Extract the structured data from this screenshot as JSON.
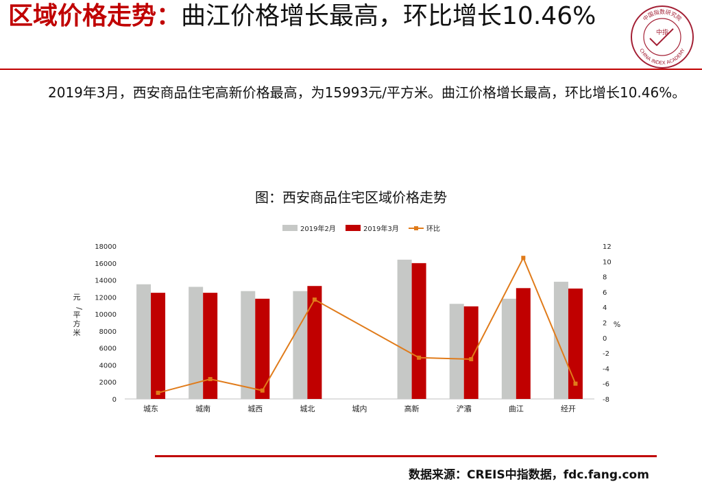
{
  "header": {
    "title_highlight": "区域价格走势",
    "title_sep": "：",
    "title_rest": "曲江价格增长最高，环比增长10.46%"
  },
  "logo": {
    "top_text": "中国指数研究院",
    "bottom_text": "CHINA INDEX ACADEMY",
    "center_text": "中指",
    "color": "#a31f34"
  },
  "description": "2019年3月，西安商品住宅高新价格最高，为15993元/平方米。曲江价格增长最高，环比增长10.46%。",
  "footer": {
    "source": "数据来源：CREIS中指数据，fdc.fang.com"
  },
  "chart_data": {
    "type": "bar",
    "title": "图：西安商品住宅区域价格走势",
    "categories": [
      "城东",
      "城南",
      "城西",
      "城北",
      "城内",
      "高新",
      "浐灞",
      "曲江",
      "经开"
    ],
    "series": [
      {
        "name": "2019年2月",
        "kind": "bar",
        "axis": "left",
        "color": "#c6c8c6",
        "values": [
          13500,
          13200,
          12700,
          12700,
          null,
          16400,
          11200,
          11800,
          13800
        ]
      },
      {
        "name": "2019年3月",
        "kind": "bar",
        "axis": "left",
        "color": "#c00000",
        "values": [
          12500,
          12500,
          11800,
          13300,
          null,
          15993,
          10900,
          13050,
          13000
        ]
      },
      {
        "name": "环比",
        "kind": "line",
        "axis": "right",
        "color": "#e07b1a",
        "values": [
          -7.2,
          -5.4,
          -6.9,
          5.0,
          null,
          -2.6,
          -2.8,
          10.46,
          -6.0
        ]
      }
    ],
    "ylabel": "元/平方米",
    "y2label": "%",
    "ylim": [
      0,
      18000
    ],
    "yticks": [
      0,
      2000,
      4000,
      6000,
      8000,
      10000,
      12000,
      14000,
      16000,
      18000
    ],
    "y2lim": [
      -8,
      12
    ],
    "y2ticks": [
      -8,
      -6,
      -4,
      -2,
      0,
      2,
      4,
      6,
      8,
      10,
      12
    ],
    "legend_position": "top-center",
    "grid": false
  }
}
